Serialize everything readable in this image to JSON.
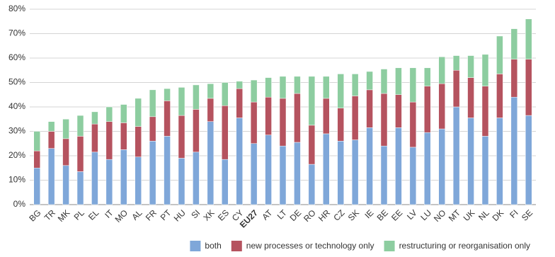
{
  "chart_data": {
    "type": "stacked_bar",
    "categories": [
      "BG",
      "TR",
      "MK",
      "PL",
      "EL",
      "IT",
      "MO",
      "AL",
      "FR",
      "PT",
      "HU",
      "SI",
      "XK",
      "ES",
      "CY",
      "EU27",
      "AT",
      "LT",
      "DE",
      "RO",
      "HR",
      "CZ",
      "SK",
      "IE",
      "BE",
      "EE",
      "LV",
      "LU",
      "NO",
      "MT",
      "UK",
      "NL",
      "DK",
      "FI",
      "SE"
    ],
    "highlight_category_index": 15,
    "series": [
      {
        "name": "both",
        "color": "#7fa7d9",
        "values": [
          15,
          23,
          16,
          13.5,
          21.5,
          18.5,
          22.5,
          19.5,
          26,
          28,
          19,
          21.5,
          34,
          18.5,
          35.5,
          25,
          28.5,
          24,
          25.5,
          16.5,
          29,
          26,
          26.5,
          31.5,
          24,
          31.5,
          23.5,
          29.5,
          31,
          40,
          35.5,
          28,
          35.5,
          44,
          36.5
        ]
      },
      {
        "name": "new processes or technology only",
        "color": "#b5535f",
        "values": [
          7,
          7,
          11,
          14.5,
          11.5,
          15.5,
          11,
          12.5,
          10,
          14.5,
          17.5,
          17.5,
          9.5,
          22,
          12,
          17,
          15.5,
          19.5,
          20,
          16,
          14.5,
          13.5,
          18,
          15.5,
          21.5,
          13.5,
          18.5,
          19,
          18.5,
          15,
          16.5,
          20.5,
          18,
          15.5,
          23
        ]
      },
      {
        "name": "restructuring or reorganisation only",
        "color": "#8dcda0",
        "values": [
          8,
          4,
          8,
          8.5,
          5,
          6,
          7.5,
          11.5,
          11,
          5,
          11.5,
          10,
          6,
          9.5,
          3,
          9,
          8,
          9,
          7,
          20,
          9,
          14,
          9,
          7.5,
          10,
          11,
          14,
          7.5,
          11,
          6,
          9,
          13,
          15.5,
          12.5,
          16.5
        ]
      }
    ],
    "ylim": [
      0,
      80
    ],
    "yticks": [
      {
        "value": 0,
        "label": "0%"
      },
      {
        "value": 10,
        "label": "10%"
      },
      {
        "value": 20,
        "label": "20%"
      },
      {
        "value": 30,
        "label": "30%"
      },
      {
        "value": 40,
        "label": "40%"
      },
      {
        "value": 50,
        "label": "50%"
      },
      {
        "value": 60,
        "label": "60%"
      },
      {
        "value": 70,
        "label": "70%"
      },
      {
        "value": 80,
        "label": "80%"
      }
    ],
    "grid": true,
    "legend": "bottom-right"
  }
}
